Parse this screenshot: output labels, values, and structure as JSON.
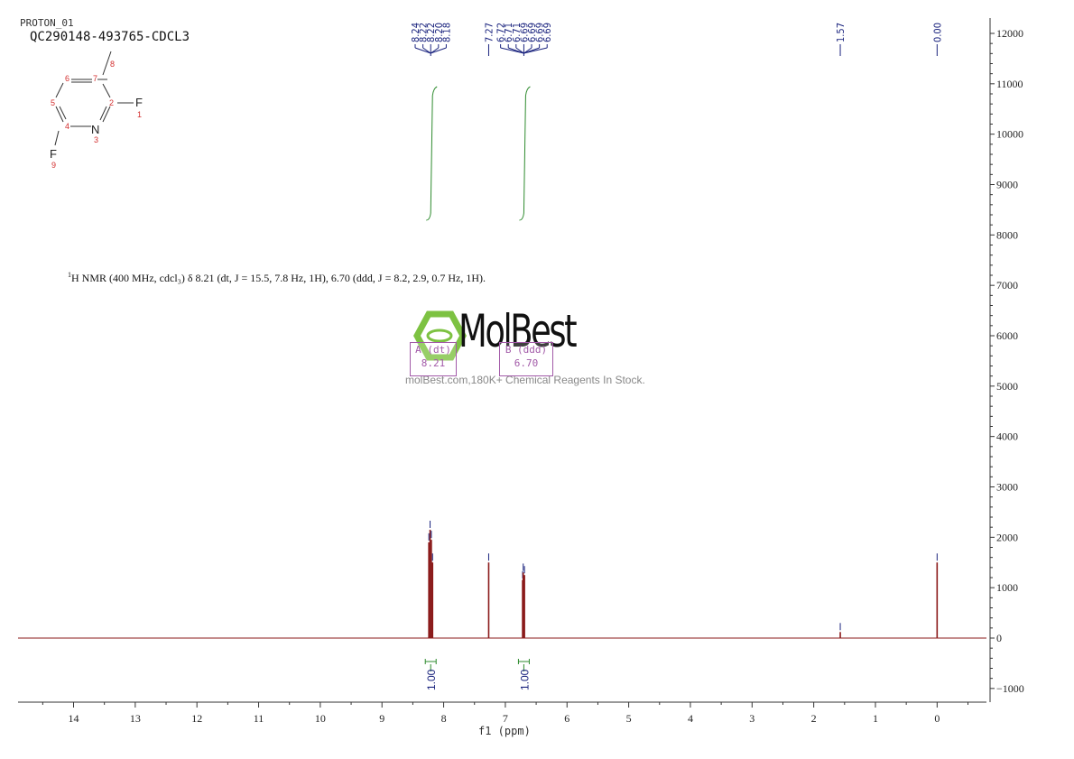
{
  "header": {
    "experiment": "PROTON_01",
    "sample": "QC290148-493765-CDCL3"
  },
  "structure_labels": {
    "atoms": [
      "F",
      "N",
      "F"
    ],
    "numbers": [
      "1",
      "2",
      "3",
      "4",
      "5",
      "6",
      "7",
      "8",
      "9"
    ]
  },
  "description": {
    "nucleus": "1",
    "text": "H NMR (400 MHz, cdcl₃) δ 8.21 (dt, J = 15.5, 7.8 Hz, 1H), 6.70 (ddd, J = 8.2, 2.9, 0.7 Hz, 1H)."
  },
  "watermark": {
    "logo": "MolBest",
    "tagline": "molBest.com,180K+ Chemical Reagents In Stock."
  },
  "multiplets": [
    {
      "label": "A (dt)",
      "shift": "8.21"
    },
    {
      "label": "B (ddd)",
      "shift": "6.70"
    }
  ],
  "chart_data": {
    "type": "line",
    "x_unit": "ppm",
    "xlabel": "f1 (ppm)",
    "xlim": [
      14.9,
      -0.8
    ],
    "ylim": [
      -1300,
      12300
    ],
    "x_ticks": [
      14,
      13,
      12,
      11,
      10,
      9,
      8,
      7,
      6,
      5,
      4,
      3,
      2,
      1,
      0
    ],
    "y_ticks": [
      12000,
      11000,
      10000,
      9000,
      8000,
      7000,
      6000,
      5000,
      4000,
      3000,
      2000,
      1000,
      0,
      -1000
    ],
    "peaks": [
      {
        "x": 8.24,
        "y": 1900
      },
      {
        "x": 8.22,
        "y": 2150
      },
      {
        "x": 8.2,
        "y": 1950
      },
      {
        "x": 8.18,
        "y": 1500
      },
      {
        "x": 7.27,
        "y": 1500
      },
      {
        "x": 6.72,
        "y": 1150
      },
      {
        "x": 6.71,
        "y": 1300
      },
      {
        "x": 6.69,
        "y": 1250
      },
      {
        "x": 1.57,
        "y": 120
      },
      {
        "x": 0.0,
        "y": 1500
      }
    ],
    "peak_labels": [
      {
        "group": 1,
        "labels": [
          "8.24",
          "8.22",
          "8.22",
          "8.20",
          "8.18"
        ]
      },
      {
        "group": 2,
        "labels": [
          "7.27"
        ]
      },
      {
        "group": 3,
        "labels": [
          "6.72",
          "6.71",
          "6.71",
          "6.69",
          "6.69",
          "6.69",
          "6.69"
        ]
      },
      {
        "group": 4,
        "labels": [
          "1.57"
        ]
      },
      {
        "group": 5,
        "labels": [
          "0.00"
        ]
      }
    ],
    "integrals": [
      {
        "from": 8.27,
        "to": 8.15,
        "value": "1.00"
      },
      {
        "from": 6.75,
        "to": 6.65,
        "value": "1.00"
      }
    ],
    "colors": {
      "spectrum": "#8b1a1a",
      "peak_marker": "#1a237e",
      "integral": "#2e8b2e",
      "label_line": "#1a237e",
      "atom_number": "#d32f2f",
      "multiplet_box": "#a25aa8",
      "logo_ring": "#7dc242"
    }
  }
}
